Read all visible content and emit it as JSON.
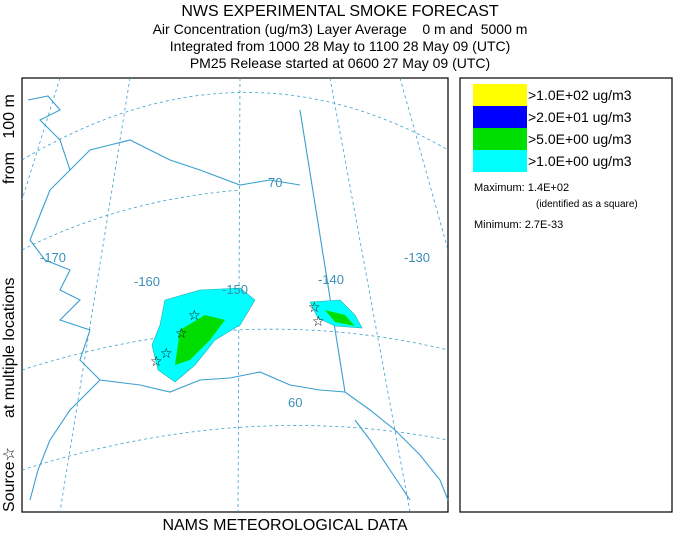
{
  "header": {
    "title": "NWS EXPERIMENTAL SMOKE FORECAST",
    "lines": [
      "Air Concentration (ug/m3) Layer Average    0 m and  5000 m",
      "Integrated from 1000 28 May to 1100 28 May 09 (UTC)",
      "PM25 Release started at 0600 27 May 09 (UTC)"
    ]
  },
  "side_label": [
    "Source☆",
    "at multiple locations",
    "from   100 m"
  ],
  "map": {
    "labels": [
      "-170",
      "-160",
      "-150",
      "-140",
      "-130",
      "70",
      "60"
    ]
  },
  "legend": {
    "entries": [
      {
        "label": ">1.0E+02 ug/m3",
        "color": "#ffff00"
      },
      {
        "label": ">2.0E+01 ug/m3",
        "color": "#0000ff"
      },
      {
        "label": ">5.0E+00 ug/m3",
        "color": "#00dd00"
      },
      {
        "label": ">1.0E+00 ug/m3",
        "color": "#00ffff"
      }
    ],
    "maximum": "Maximum: 1.4E+02",
    "maximum_note": "(identified as a square)",
    "minimum": "Minimum: 2.7E-33"
  },
  "footer": "NAMS METEOROLOGICAL DATA"
}
